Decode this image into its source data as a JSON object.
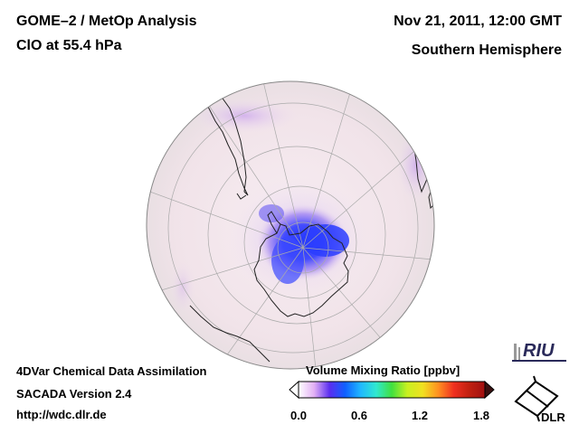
{
  "header": {
    "title": "GOME–2 / MetOp Analysis",
    "subtitle": "ClO at 55.4 hPa",
    "date": "Nov 21, 2011, 12:00 GMT",
    "hemisphere": "Southern Hemisphere"
  },
  "footer": {
    "line1": "4DVar Chemical Data Assimilation",
    "line2": "SACADA Version 2.4",
    "line3": "http://wdc.dlr.de"
  },
  "colorbar": {
    "title": "Volume Mixing Ratio [ppbv]",
    "ticks": [
      "0.0",
      "0.6",
      "1.2",
      "1.8"
    ],
    "range": [
      0.0,
      1.8
    ],
    "colors": [
      "#ffffff",
      "#e2b0f4",
      "#5a2ef0",
      "#1060ff",
      "#20b8ff",
      "#30e8d0",
      "#40e040",
      "#c8f020",
      "#f0e020",
      "#ff9020",
      "#f03020",
      "#c02010",
      "#a01010"
    ]
  },
  "map_colors": {
    "background": "#f3e8ec",
    "clo_max": "#2a3dff"
  },
  "logos": {
    "riu": "RIU",
    "dlr": "DLR"
  }
}
